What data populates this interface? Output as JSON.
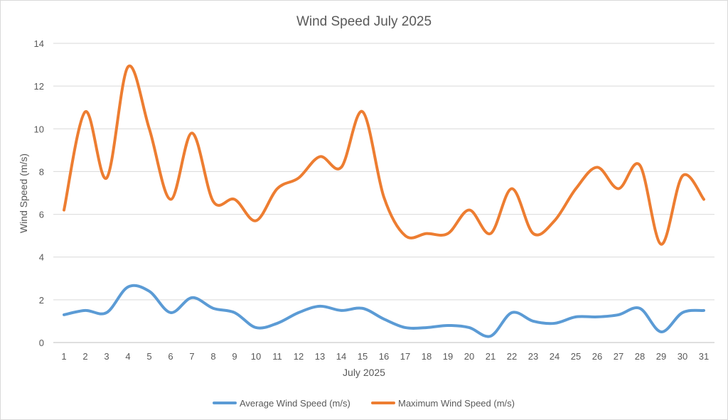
{
  "chart_data": {
    "type": "line",
    "title": "Wind Speed July 2025",
    "xlabel": "July 2025",
    "ylabel": "Wind Speed (m/s)",
    "ylim": [
      0,
      14
    ],
    "yticks": [
      0,
      2,
      4,
      6,
      8,
      10,
      12,
      14
    ],
    "grid": true,
    "smooth": true,
    "legend": "bottom",
    "categories": [
      "1",
      "2",
      "3",
      "4",
      "5",
      "6",
      "7",
      "8",
      "9",
      "10",
      "11",
      "12",
      "13",
      "14",
      "15",
      "16",
      "17",
      "18",
      "19",
      "20",
      "21",
      "22",
      "23",
      "24",
      "25",
      "26",
      "27",
      "28",
      "29",
      "30",
      "31"
    ],
    "series": [
      {
        "name": "Average Wind Speed (m/s)",
        "color": "#5b9bd5",
        "values": [
          1.3,
          1.5,
          1.4,
          2.6,
          2.4,
          1.4,
          2.1,
          1.6,
          1.4,
          0.7,
          0.9,
          1.4,
          1.7,
          1.5,
          1.6,
          1.1,
          0.7,
          0.7,
          0.8,
          0.7,
          0.3,
          1.4,
          1.0,
          0.9,
          1.2,
          1.2,
          1.3,
          1.6,
          0.5,
          1.4,
          1.5
        ]
      },
      {
        "name": "Maximum Wind Speed (m/s)",
        "color": "#ed7d31",
        "values": [
          6.2,
          10.8,
          7.7,
          12.9,
          10.0,
          6.7,
          9.8,
          6.6,
          6.7,
          5.7,
          7.2,
          7.7,
          8.7,
          8.2,
          10.8,
          6.8,
          5.0,
          5.1,
          5.1,
          6.2,
          5.1,
          7.2,
          5.1,
          5.7,
          7.2,
          8.2,
          7.2,
          8.3,
          4.6,
          7.8,
          6.7
        ]
      }
    ]
  }
}
